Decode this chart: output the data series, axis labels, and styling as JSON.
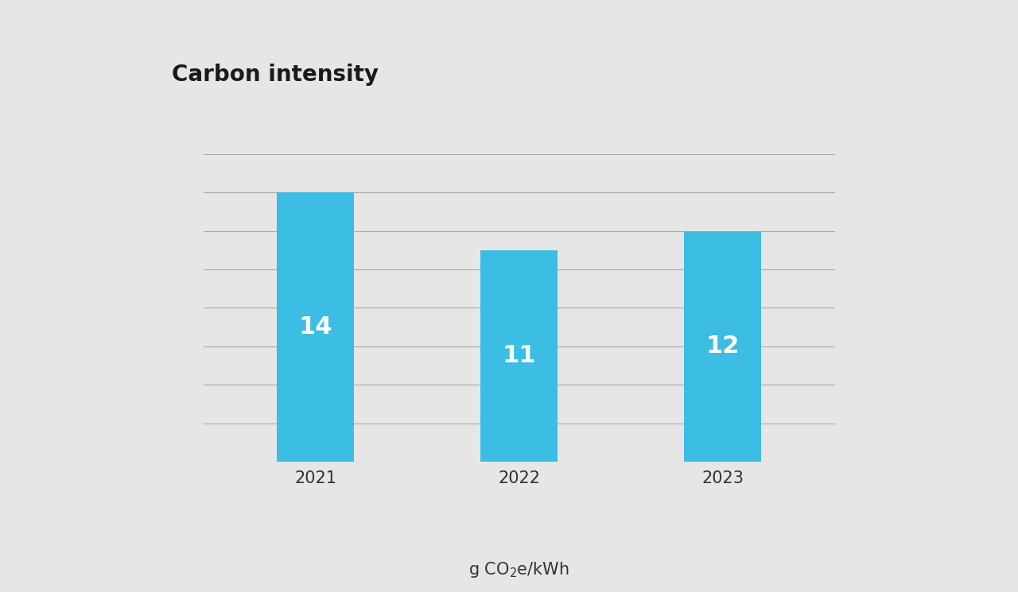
{
  "title": "Carbon intensity",
  "categories": [
    "2021",
    "2022",
    "2023"
  ],
  "values": [
    14,
    11,
    12
  ],
  "bar_color": "#3bbde4",
  "background_color": "#e6e6e6",
  "label_color": "#ffffff",
  "title_color": "#1a1a1a",
  "tick_color": "#333333",
  "ylim": [
    0,
    16
  ],
  "yticks": [
    0,
    2,
    4,
    6,
    8,
    10,
    12,
    14,
    16
  ],
  "title_fontsize": 20,
  "bar_label_fontsize": 22,
  "tick_fontsize": 15,
  "xlabel_fontsize": 15,
  "grid_color": "#aaaaaa",
  "grid_linewidth": 0.8,
  "bar_width": 0.38
}
